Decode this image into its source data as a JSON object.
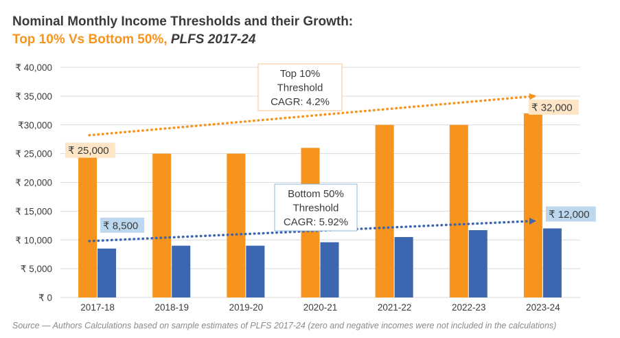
{
  "title": "Nominal Monthly Income Thresholds and their Growth:",
  "subtitle_main": "Top 10% Vs Bottom 50%, ",
  "subtitle_italic": "PLFS 2017-24",
  "source": "Source — Authors Calculations based on sample estimates of PLFS 2017-24 (zero and negative incomes were not included in the calculations)",
  "colors": {
    "top10": "#f7941d",
    "bottom50": "#3d66b0",
    "grid": "#d9d9d9",
    "top_label_bg": "#fde5c6",
    "bottom_label_bg": "#bdd7ee",
    "top_box_border": "#f7c58a",
    "bottom_box_border": "#8eb4dc"
  },
  "chart_data": {
    "type": "bar",
    "categories": [
      "2017-18",
      "2018-19",
      "2019-20",
      "2020-21",
      "2021-22",
      "2022-23",
      "2023-24"
    ],
    "series": [
      {
        "name": "Top 10% Threshold",
        "values": [
          25000,
          25000,
          25000,
          26000,
          30000,
          30000,
          32000
        ]
      },
      {
        "name": "Bottom 50% Threshold",
        "values": [
          8500,
          9000,
          9000,
          9600,
          10500,
          11700,
          12000
        ]
      }
    ],
    "ylim": [
      0,
      40000
    ],
    "y_ticks": [
      {
        "value": 0,
        "label": "₹ 0"
      },
      {
        "value": 5000,
        "label": "₹ 5,000"
      },
      {
        "value": 10000,
        "label": "₹ 10,000"
      },
      {
        "value": 15000,
        "label": "₹ 15,000"
      },
      {
        "value": 20000,
        "label": "₹ 20,000"
      },
      {
        "value": 25000,
        "label": "₹ 25,000"
      },
      {
        "value": 30000,
        "label": "₹30,000"
      },
      {
        "value": 35000,
        "label": "₹ 35,000"
      },
      {
        "value": 40000,
        "label": "₹ 40,000"
      }
    ],
    "grid": true,
    "data_labels": [
      {
        "series": 0,
        "index": 0,
        "text": "₹ 25,000"
      },
      {
        "series": 0,
        "index": 6,
        "text": "₹ 32,000"
      },
      {
        "series": 1,
        "index": 0,
        "text": "₹ 8,500"
      },
      {
        "series": 1,
        "index": 6,
        "text": "₹ 12,000"
      }
    ],
    "trend_lines": [
      {
        "series": 0,
        "from": [
          0,
          28200
        ],
        "to": [
          6,
          35000
        ]
      },
      {
        "series": 1,
        "from": [
          0,
          9800
        ],
        "to": [
          6,
          13300
        ]
      }
    ],
    "annotations": [
      {
        "series": 0,
        "lines": [
          "Top 10%",
          "Threshold",
          "CAGR: 4.2%"
        ]
      },
      {
        "series": 1,
        "lines": [
          "Bottom 50%",
          "Threshold",
          "CAGR: 5.92%"
        ]
      }
    ]
  }
}
